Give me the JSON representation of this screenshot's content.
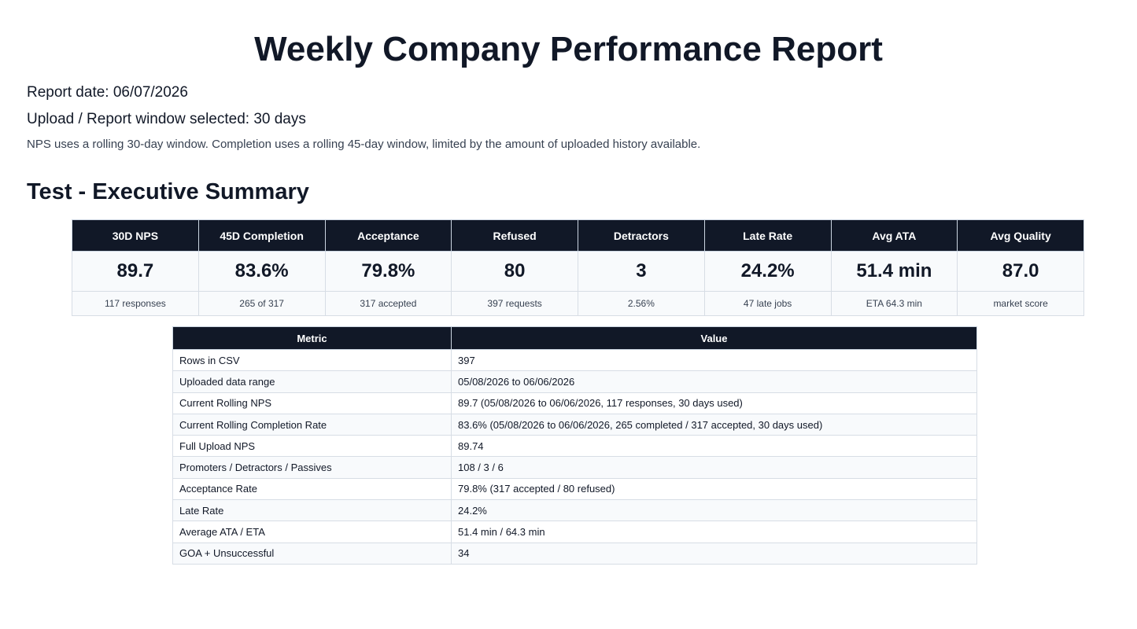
{
  "header": {
    "title": "Weekly Company Performance Report",
    "report_date": "Report date: 06/07/2026",
    "window": "Upload / Report window selected: 30 days",
    "note": "NPS uses a rolling 30-day window. Completion uses a rolling 45-day window, limited by the amount of uploaded history available."
  },
  "section_title": "Test - Executive Summary",
  "kpis": [
    {
      "label": "30D NPS",
      "value": "89.7",
      "sub": "117 responses"
    },
    {
      "label": "45D Completion",
      "value": "83.6%",
      "sub": "265 of 317"
    },
    {
      "label": "Acceptance",
      "value": "79.8%",
      "sub": "317 accepted"
    },
    {
      "label": "Refused",
      "value": "80",
      "sub": "397 requests"
    },
    {
      "label": "Detractors",
      "value": "3",
      "sub": "2.56%"
    },
    {
      "label": "Late Rate",
      "value": "24.2%",
      "sub": "47 late jobs"
    },
    {
      "label": "Avg ATA",
      "value": "51.4 min",
      "sub": "ETA 64.3 min"
    },
    {
      "label": "Avg Quality",
      "value": "87.0",
      "sub": "market score"
    }
  ],
  "table": {
    "columns": [
      "Metric",
      "Value"
    ],
    "rows": [
      [
        "Rows in CSV",
        "397"
      ],
      [
        "Uploaded data range",
        "05/08/2026 to 06/06/2026"
      ],
      [
        "Current Rolling NPS",
        "89.7 (05/08/2026 to 06/06/2026, 117 responses, 30 days used)"
      ],
      [
        "Current Rolling Completion Rate",
        "83.6% (05/08/2026 to 06/06/2026, 265 completed / 317 accepted, 30 days used)"
      ],
      [
        "Full Upload NPS",
        "89.74"
      ],
      [
        "Promoters / Detractors / Passives",
        "108 / 3 / 6"
      ],
      [
        "Acceptance Rate",
        "79.8% (317 accepted / 80 refused)"
      ],
      [
        "Late Rate",
        "24.2%"
      ],
      [
        "Average ATA / ETA",
        "51.4 min / 64.3 min"
      ],
      [
        "GOA + Unsuccessful",
        "34"
      ]
    ]
  }
}
